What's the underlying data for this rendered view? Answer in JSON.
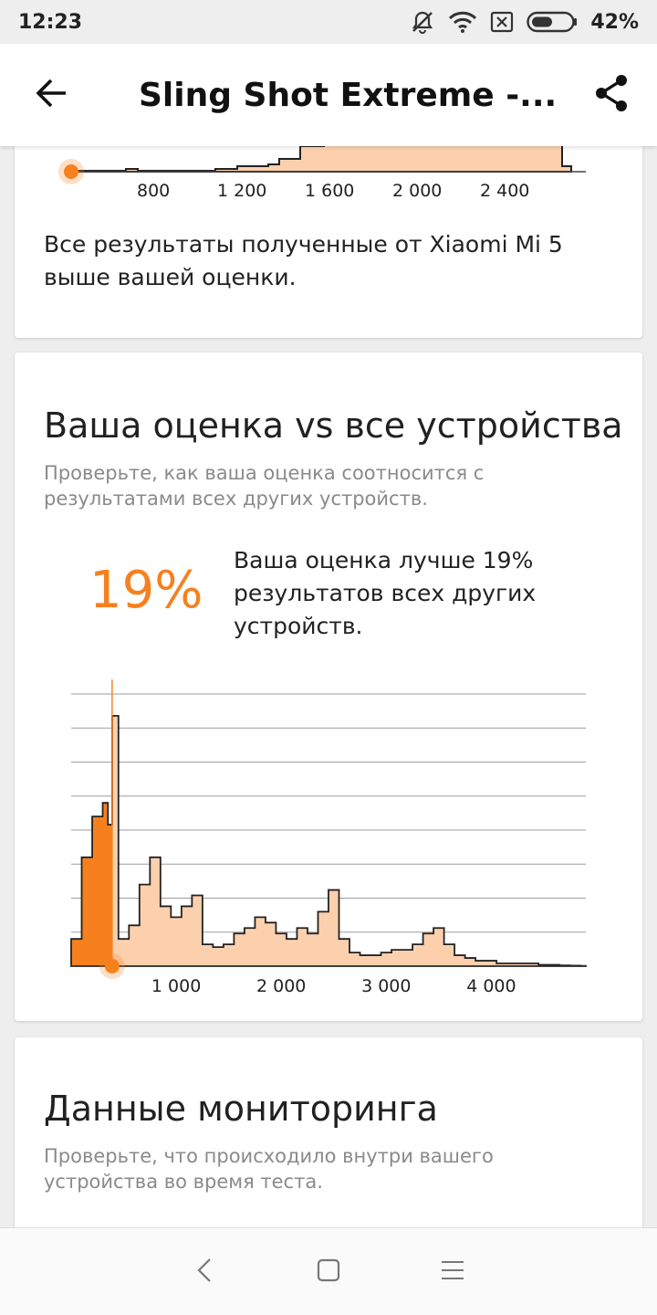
{
  "status_bar": {
    "time": "12:23",
    "battery_percent": "42%",
    "icons": [
      "notifications-off-icon",
      "wifi-icon",
      "sim-icon",
      "battery-icon"
    ]
  },
  "app_bar": {
    "title": "Sling Shot Extreme -...",
    "back_icon": "arrow-left-icon",
    "share_icon": "share-icon"
  },
  "top_card": {
    "axis_ticks": [
      "800",
      "1 200",
      "1 600",
      "2 000",
      "2 400"
    ],
    "message": "Все результаты полученные от Xiaomi Mi 5 выше вашей оценки."
  },
  "score_card": {
    "title": "Ваша оценка vs все устройства",
    "subtitle": "Проверьте, как ваша оценка соотносится с результатами всех других устройств.",
    "percent": "19%",
    "percent_text": "Ваша оценка лучше 19% результатов всех других устройств.",
    "accent_color": "#f7801e"
  },
  "chart_data": {
    "type": "area",
    "title": "",
    "xlabel": "",
    "ylabel": "",
    "x_ticks": [
      "1 000",
      "2 000",
      "3 000",
      "4 000"
    ],
    "xlim": [
      0,
      4900
    ],
    "your_score_marker": 390,
    "grid": true,
    "fill_color": "#fdd0ad",
    "highlight_color": "#f7801e",
    "x": [
      0,
      100,
      200,
      300,
      350,
      390,
      450,
      550,
      650,
      750,
      850,
      950,
      1050,
      1150,
      1250,
      1350,
      1450,
      1550,
      1650,
      1750,
      1850,
      1950,
      2050,
      2150,
      2250,
      2350,
      2450,
      2550,
      2650,
      2750,
      2850,
      2950,
      3050,
      3150,
      3250,
      3350,
      3450,
      3550,
      3650,
      3750,
      3850,
      3950,
      4050,
      4150,
      4250,
      4350,
      4450,
      4550,
      4650,
      4750,
      4850
    ],
    "y": [
      10,
      40,
      55,
      60,
      52,
      92,
      10,
      15,
      30,
      40,
      22,
      18,
      22,
      26,
      8,
      7,
      8,
      12,
      14,
      18,
      16,
      12,
      10,
      14,
      12,
      20,
      28,
      10,
      5,
      4,
      4,
      5,
      6,
      6,
      8,
      12,
      14,
      8,
      4,
      3,
      2,
      2,
      1,
      1,
      1,
      1,
      0.5,
      0.5,
      0.3,
      0.2,
      0.1
    ]
  },
  "monitoring_card": {
    "title": "Данные мониторинга",
    "subtitle": "Проверьте, что происходило внутри вашего устройства во время теста."
  },
  "nav_bar": {
    "icons": [
      "nav-back-icon",
      "nav-home-icon",
      "nav-menu-icon"
    ]
  }
}
